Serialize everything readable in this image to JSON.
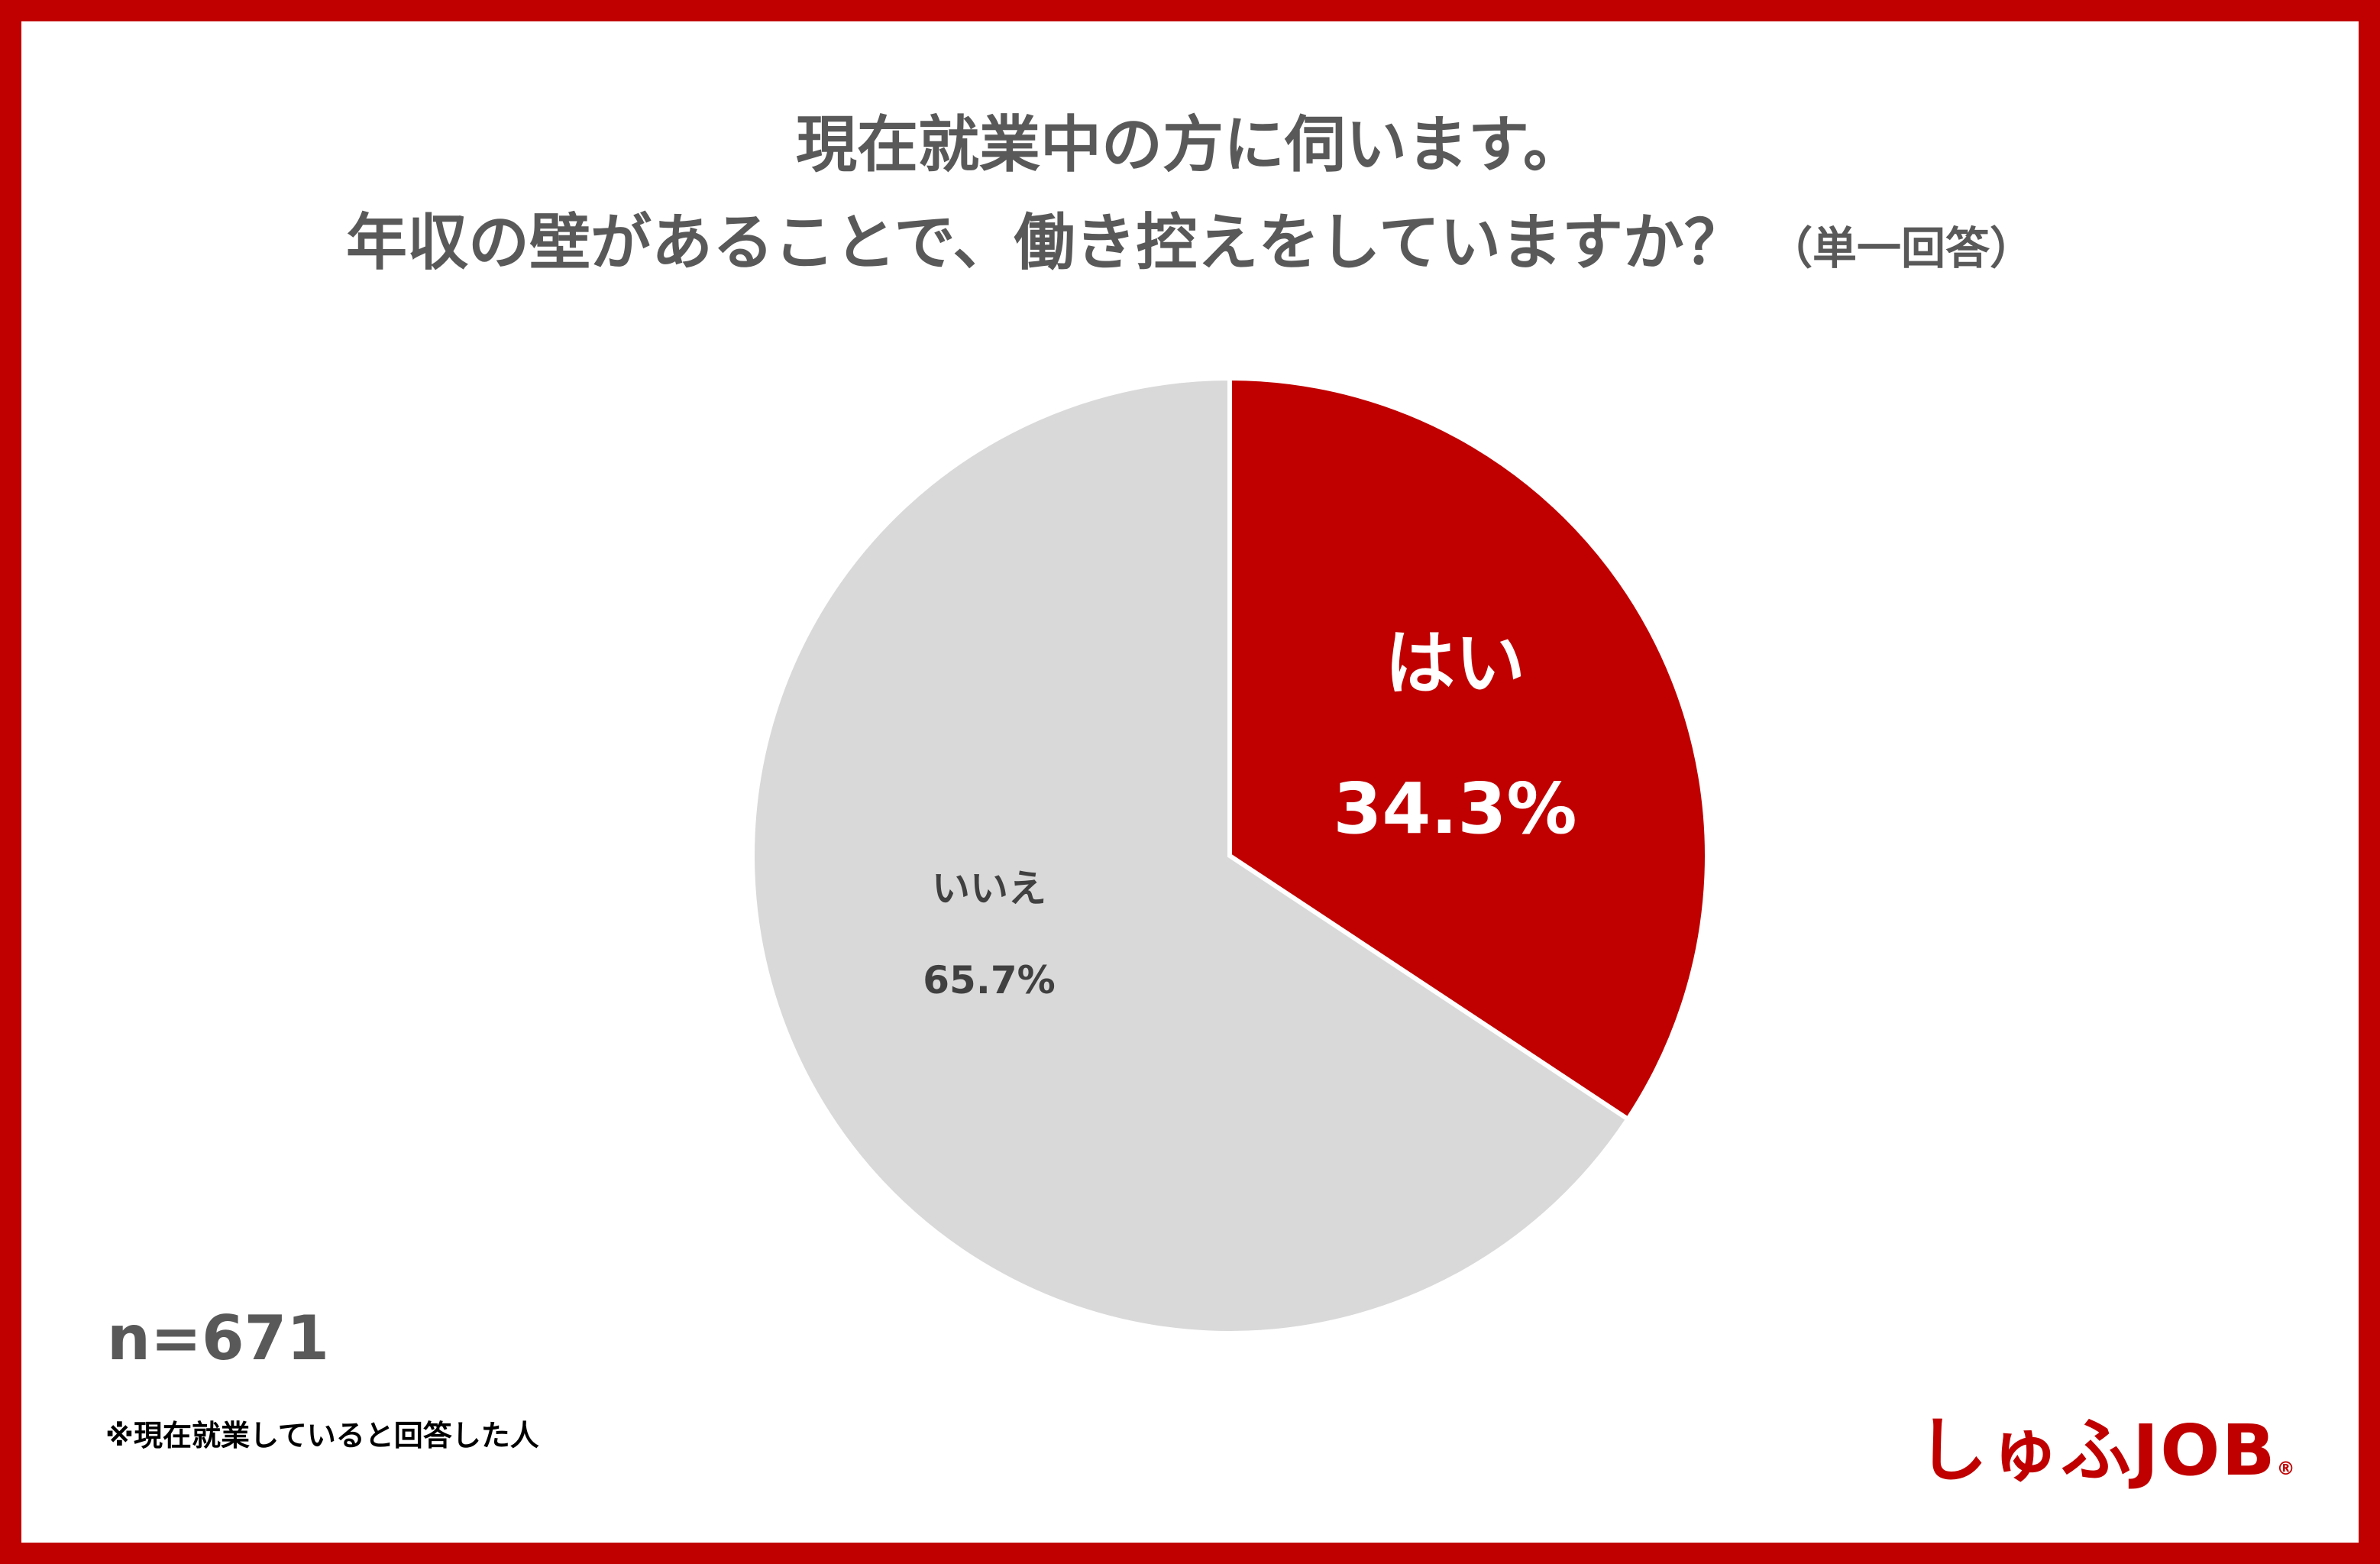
{
  "title": {
    "line1": "現在就業中の方に伺います。",
    "line2": "年収の壁があることで、働き控えをしていますか？",
    "note": "（単一回答）"
  },
  "colors": {
    "frame": "#c00000",
    "title": "#595959",
    "slice_yes": "#c00000",
    "slice_no": "#d9d9d9",
    "label_yes": "#ffffff",
    "label_no": "#404040"
  },
  "chart_data": {
    "type": "pie",
    "title": "現在就業中の方に伺います。年収の壁があることで、働き控えをしていますか？",
    "categories": [
      "はい",
      "いいえ"
    ],
    "values": [
      34.3,
      65.7
    ],
    "value_labels": [
      "34.3%",
      "65.7%"
    ],
    "start_angle": "12 o'clock, clockwise"
  },
  "sample_size": "n=671",
  "footnote": "※現在就業していると回答した人",
  "logo": {
    "text": "しゅふJOB",
    "mark": "®"
  }
}
